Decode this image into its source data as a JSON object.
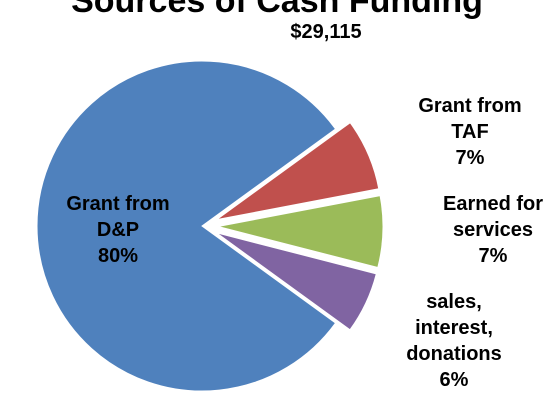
{
  "chart_data": {
    "type": "pie",
    "title": "Sources of Cash Funding",
    "subtitle": "$29,115",
    "slices": [
      {
        "label": "Grant from D&P",
        "label_lines": [
          "Grant from",
          "D&P"
        ],
        "percent_label": "80%",
        "value": 80,
        "color": "#4F81BD",
        "exploded": false
      },
      {
        "label": "Grant from TAF",
        "label_lines": [
          "Grant from",
          "TAF"
        ],
        "percent_label": "7%",
        "value": 7,
        "color": "#C0504D",
        "exploded": true
      },
      {
        "label": "Earned for services",
        "label_lines": [
          "Earned for",
          "services"
        ],
        "percent_label": "7%",
        "value": 7,
        "color": "#9BBB59",
        "exploded": true
      },
      {
        "label": "sales, interest, donations",
        "label_lines": [
          "sales,",
          "interest,",
          "donations"
        ],
        "percent_label": "6%",
        "value": 6,
        "color": "#8064A2",
        "exploded": true
      }
    ],
    "legend": "none"
  }
}
